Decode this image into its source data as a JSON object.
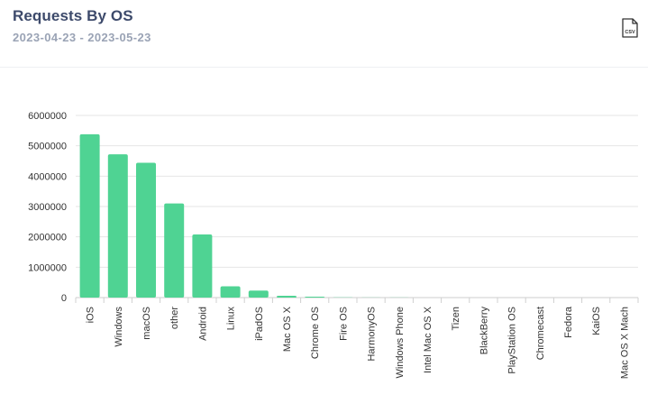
{
  "header": {
    "title": "Requests By OS",
    "date_range": "2023-04-23 - 2023-05-23",
    "csv_label": "CSV"
  },
  "colors": {
    "bar": "#4fd393",
    "grid": "#e6e6e6",
    "title": "#3d4a6b",
    "subtitle": "#9aa3b5",
    "tick_text": "#333333"
  },
  "icons": {
    "export": "csv-file-icon"
  },
  "chart_data": {
    "type": "bar",
    "categories": [
      "iOS",
      "Windows",
      "macOS",
      "other",
      "Android",
      "Linux",
      "iPadOS",
      "Mac OS X",
      "Chrome OS",
      "Fire OS",
      "HarmonyOS",
      "Windows Phone",
      "Intel Mac OS X",
      "Tizen",
      "BlackBerry",
      "PlayStation OS",
      "Chromecast",
      "Fedora",
      "KaiOS",
      "Mac OS X Mach"
    ],
    "values": [
      5380000,
      4720000,
      4440000,
      3100000,
      2080000,
      370000,
      230000,
      60000,
      30000,
      8000,
      3000,
      2000,
      1500,
      1000,
      800,
      600,
      500,
      400,
      300,
      200
    ],
    "yticks": [
      0,
      1000000,
      2000000,
      3000000,
      4000000,
      5000000,
      6000000
    ],
    "ytick_labels": [
      "0",
      "1000000",
      "2000000",
      "3000000",
      "4000000",
      "5000000",
      "6000000"
    ],
    "ylim": [
      0,
      6000000
    ],
    "grid": true,
    "legend": "none"
  }
}
